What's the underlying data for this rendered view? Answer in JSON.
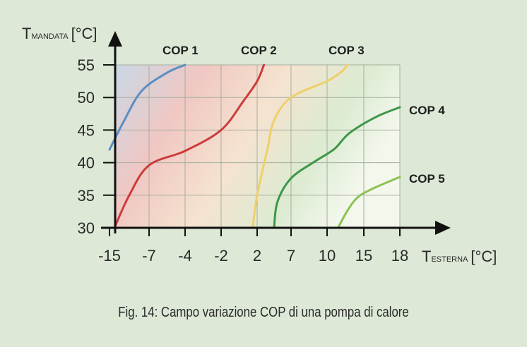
{
  "chart_data": {
    "type": "line",
    "x_ticks": [
      "-15",
      "-7",
      "-4",
      "-2",
      "2",
      "7",
      "10",
      "15",
      "18"
    ],
    "y_ticks": [
      30,
      35,
      40,
      45,
      50,
      55
    ],
    "ylim": [
      30,
      57
    ],
    "ylabel_main": "T",
    "ylabel_sub": "MANDATA",
    "ylabel_unit": "[°C]",
    "xlabel_main": "T",
    "xlabel_sub": "ESTERNA",
    "xlabel_unit": "[°C]",
    "grid": true,
    "series": [
      {
        "name": "COP 1",
        "color": "#5b8ec4",
        "points": [
          [
            -15,
            42
          ],
          [
            -12,
            46.5
          ],
          [
            -8.5,
            51
          ],
          [
            -5.5,
            53.8
          ],
          [
            -4,
            55
          ]
        ]
      },
      {
        "name": "COP 2",
        "color": "#cc3c3a",
        "points": [
          [
            -14,
            30
          ],
          [
            -11,
            35
          ],
          [
            -7,
            39.6
          ],
          [
            -4,
            41.8
          ],
          [
            -2,
            45
          ],
          [
            0.5,
            49.5
          ],
          [
            2,
            52.5
          ],
          [
            3,
            55
          ]
        ]
      },
      {
        "name": "COP 3",
        "color": "#f0cf6a",
        "points": [
          [
            1.5,
            30
          ],
          [
            2,
            35
          ],
          [
            3.5,
            42
          ],
          [
            4.5,
            46.5
          ],
          [
            7,
            50
          ],
          [
            10,
            52.5
          ],
          [
            12,
            54
          ],
          [
            12.8,
            55
          ]
        ]
      },
      {
        "name": "COP 4",
        "color": "#3e9748",
        "points": [
          [
            4.5,
            30
          ],
          [
            5,
            34
          ],
          [
            7,
            37.6
          ],
          [
            9,
            40.2
          ],
          [
            11,
            42.1
          ],
          [
            13,
            44.5
          ],
          [
            16,
            47
          ],
          [
            18,
            48.5
          ]
        ]
      },
      {
        "name": "COP 5",
        "color": "#8cc252",
        "points": [
          [
            11.5,
            30
          ],
          [
            12.7,
            32.5
          ],
          [
            14,
            34.5
          ],
          [
            15.5,
            35.8
          ],
          [
            18,
            37.8
          ]
        ]
      }
    ]
  },
  "caption": "Fig. 14: Campo variazione COP di una pompa di calore"
}
